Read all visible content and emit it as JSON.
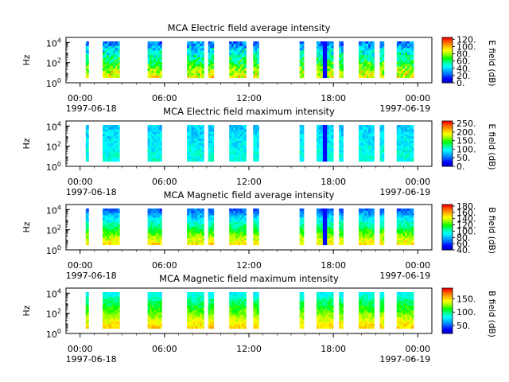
{
  "chart_data": [
    {
      "type": "heatmap",
      "title": "MCA  Electric field average intensity",
      "ylabel": "Hz",
      "colorbar_label": "E field (dB)",
      "colorbar_ticks": [
        "0.",
        "20.",
        "40.",
        "60.",
        "80.",
        "100.",
        "120."
      ],
      "colorbar_range": [
        0,
        125
      ],
      "y_ticks": [
        {
          "base": "10",
          "exp": "0"
        },
        {
          "base": "10",
          "exp": "2"
        },
        {
          "base": "10",
          "exp": "4"
        }
      ],
      "ylim_log10": [
        0,
        4.5
      ],
      "x_ticks": [
        "00:00",
        "06:00",
        "12:00",
        "18:00",
        "00:00"
      ],
      "x_start_label": "1997-06-18",
      "x_end_label": "1997-06-19",
      "profile": "eavg"
    },
    {
      "type": "heatmap",
      "title": "MCA  Electric field maximum intensity",
      "ylabel": "Hz",
      "colorbar_label": "E field (dB)",
      "colorbar_ticks": [
        "0.",
        "50.",
        "100.",
        "150.",
        "200.",
        "250."
      ],
      "colorbar_range": [
        0,
        265
      ],
      "y_ticks": [
        {
          "base": "10",
          "exp": "0"
        },
        {
          "base": "10",
          "exp": "2"
        },
        {
          "base": "10",
          "exp": "4"
        }
      ],
      "ylim_log10": [
        0,
        4.5
      ],
      "x_ticks": [
        "00:00",
        "06:00",
        "12:00",
        "18:00",
        "00:00"
      ],
      "x_start_label": "1997-06-18",
      "x_end_label": "1997-06-19",
      "profile": "emax"
    },
    {
      "type": "heatmap",
      "title": "MCA  Magnetic field average intensity",
      "ylabel": "Hz",
      "colorbar_label": "B field (dB)",
      "colorbar_ticks": [
        "40.",
        "60.",
        "80.",
        "100.",
        "120.",
        "140.",
        "160.",
        "180."
      ],
      "colorbar_range": [
        40,
        185
      ],
      "y_ticks": [
        {
          "base": "10",
          "exp": "0"
        },
        {
          "base": "10",
          "exp": "2"
        },
        {
          "base": "10",
          "exp": "4"
        }
      ],
      "ylim_log10": [
        0,
        4.5
      ],
      "x_ticks": [
        "00:00",
        "06:00",
        "12:00",
        "18:00",
        "00:00"
      ],
      "x_start_label": "1997-06-18",
      "x_end_label": "1997-06-19",
      "profile": "bavg"
    },
    {
      "type": "heatmap",
      "title": "MCA  Magnetic field maximum intensity",
      "ylabel": "Hz",
      "colorbar_label": "B field (dB)",
      "colorbar_ticks": [
        "50.",
        "100.",
        "150."
      ],
      "colorbar_range": [
        20,
        190
      ],
      "y_ticks": [
        {
          "base": "10",
          "exp": "0"
        },
        {
          "base": "10",
          "exp": "2"
        },
        {
          "base": "10",
          "exp": "4"
        }
      ],
      "ylim_log10": [
        0,
        4.5
      ],
      "x_ticks": [
        "00:00",
        "06:00",
        "12:00",
        "18:00",
        "00:00"
      ],
      "x_start_label": "1997-06-18",
      "x_end_label": "1997-06-19",
      "profile": "bmax"
    }
  ],
  "time_axis": {
    "start_hour": -1,
    "end_hour": 25
  },
  "data_intervals_hours": [
    [
      0.4,
      0.6
    ],
    [
      1.6,
      2.8
    ],
    [
      4.8,
      5.8
    ],
    [
      7.6,
      8.8
    ],
    [
      9.1,
      9.5
    ],
    [
      10.6,
      11.8
    ],
    [
      12.3,
      12.7
    ],
    [
      15.6,
      15.9
    ],
    [
      16.8,
      18.0
    ],
    [
      18.4,
      18.7
    ],
    [
      19.8,
      20.9
    ],
    [
      21.3,
      21.6
    ],
    [
      22.5,
      23.7
    ]
  ],
  "colormap": [
    "#0000c8",
    "#0000ff",
    "#0064ff",
    "#00b4ff",
    "#00ffff",
    "#00ff96",
    "#00ff00",
    "#96ff00",
    "#ffff00",
    "#ffb400",
    "#ff6400",
    "#ff0000"
  ]
}
